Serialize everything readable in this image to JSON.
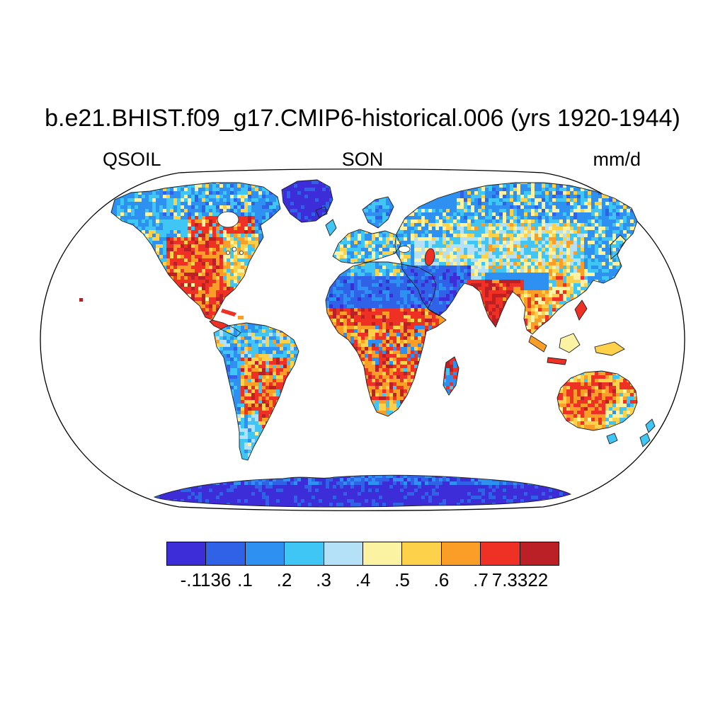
{
  "title": "b.e21.BHIST.f09_g17.CMIP6-historical.006 (yrs 1920-1944)",
  "header": {
    "variable": "QSOIL",
    "season": "SON",
    "units": "mm/d"
  },
  "chart_data": {
    "type": "heatmap",
    "title": "b.e21.BHIST.f09_g17.CMIP6-historical.006 (yrs 1920-1944)",
    "variable": "QSOIL",
    "season": "SON",
    "units": "mm/d",
    "projection": "Robinson-style world map, ocean masked white, land colored by value",
    "value_min": -0.1136,
    "value_max": 7.3322,
    "contour_levels": [
      0.1,
      0.2,
      0.3,
      0.4,
      0.5,
      0.6,
      0.7
    ],
    "colorbar_labels": [
      "-.1136",
      ".1",
      ".2",
      ".3",
      ".4",
      ".5",
      ".6",
      ".7",
      "7.3322"
    ],
    "palette": [
      "#3c2dd9",
      "#2f62e6",
      "#2e90f0",
      "#3fc6f5",
      "#b5e1f8",
      "#fcf3a2",
      "#fdd14a",
      "#fb9e27",
      "#ee3124",
      "#ba2025"
    ],
    "regions_readout": [
      {
        "region": "Greenland and Antarctica",
        "approx_value": "below .1 (minimum bin)"
      },
      {
        "region": "Sahara and Arabian Peninsula",
        "approx_value": ".1 - .2"
      },
      {
        "region": "Sahel belt",
        "approx_value": "above .7 (maximum bin)"
      },
      {
        "region": "Central/southern United States and Mexico",
        "approx_value": ".6 - above .7"
      },
      {
        "region": "India",
        "approx_value": "above .7"
      },
      {
        "region": "Siberia and northern Canada",
        "approx_value": ".1 - .3"
      },
      {
        "region": "Amazon basin",
        "approx_value": ".2 - .4"
      },
      {
        "region": "Eastern Brazil",
        "approx_value": ".5 - .7"
      },
      {
        "region": "Southern Africa",
        "approx_value": ".5 - above .7"
      },
      {
        "region": "Central Australia",
        "approx_value": ".5 - .7"
      }
    ]
  }
}
